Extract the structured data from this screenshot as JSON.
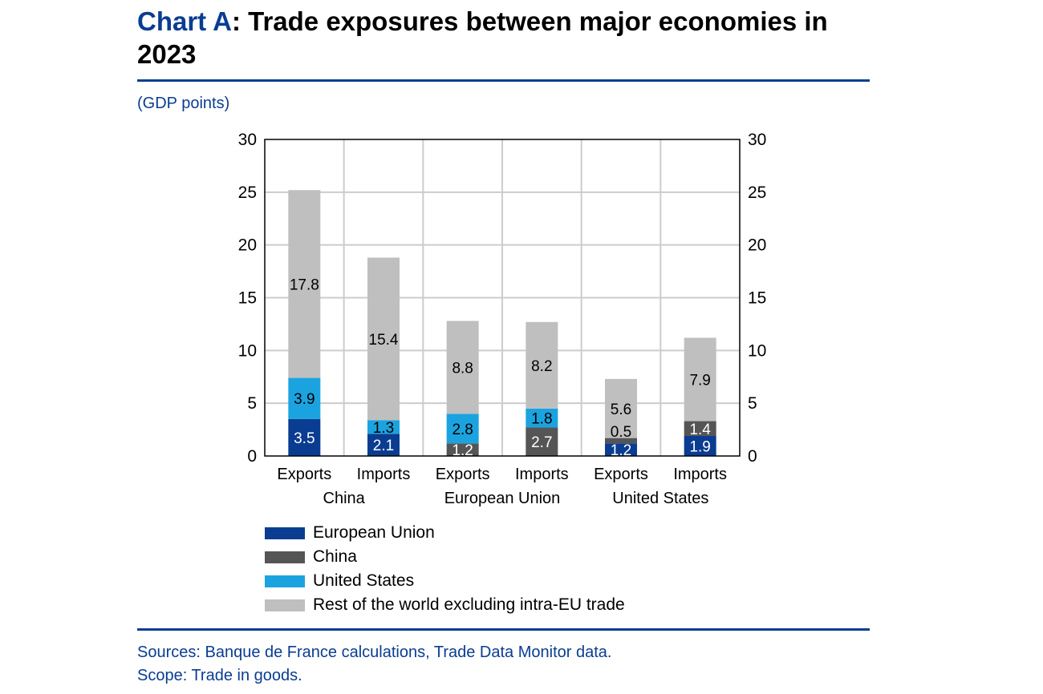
{
  "title": {
    "prefix": "Chart A",
    "rest": ": Trade exposures between major economies in 2023"
  },
  "unit": "(GDP points)",
  "footer": {
    "sources": "Sources: Banque de France calculations, Trade Data Monitor data.",
    "scope": "Scope: Trade in goods."
  },
  "chart_data": {
    "type": "bar",
    "stacked": true,
    "categories": [
      "Exports",
      "Imports",
      "Exports",
      "Imports",
      "Exports",
      "Imports"
    ],
    "groups": [
      "China",
      "European Union",
      "United States"
    ],
    "ylim": [
      0,
      30
    ],
    "yticks": [
      0,
      5,
      10,
      15,
      20,
      25,
      30
    ],
    "secondary_y_axis": true,
    "grid": true,
    "legend_position": "bottom",
    "series": [
      {
        "name": "European Union",
        "color": "#0a3d91",
        "label_color": "#ffffff",
        "values": [
          3.5,
          2.1,
          null,
          null,
          1.2,
          1.9
        ]
      },
      {
        "name": "China",
        "color": "#555555",
        "label_color": "#ffffff",
        "values": [
          null,
          null,
          1.2,
          2.7,
          0.5,
          1.4
        ]
      },
      {
        "name": "United States",
        "color": "#1ba3e0",
        "label_color": "#000000",
        "values": [
          3.9,
          1.3,
          2.8,
          1.8,
          null,
          null
        ]
      },
      {
        "name": "Rest of the world excluding intra-EU trade",
        "color": "#bfbfbf",
        "label_color": "#000000",
        "values": [
          17.8,
          15.4,
          8.8,
          8.2,
          5.6,
          7.9
        ]
      }
    ]
  }
}
